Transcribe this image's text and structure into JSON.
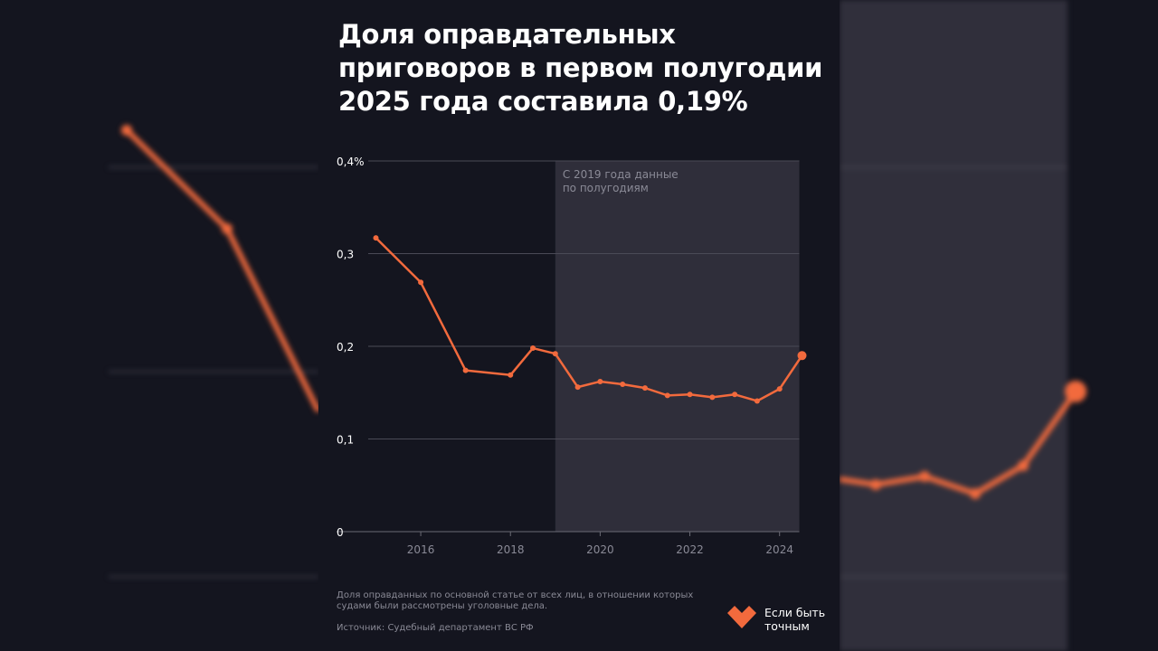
{
  "title": "Доля оправдательных приговоров в первом полугодии 2025 года составила 0,19%",
  "chart_data": {
    "type": "line",
    "title": "Доля оправдательных приговоров в первом полугодии 2025 года составила 0,19%",
    "xlabel": "",
    "ylabel": "",
    "ylim": [
      0,
      0.4
    ],
    "xlim": [
      2015,
      2024.5
    ],
    "y_ticks": [
      "0",
      "0,1",
      "0,2",
      "0,3",
      "0,4%"
    ],
    "x_ticks": [
      "2016",
      "2018",
      "2020",
      "2022",
      "2024"
    ],
    "x_tick_values": [
      2016,
      2018,
      2020,
      2022,
      2024
    ],
    "y_tick_values": [
      0,
      0.1,
      0.2,
      0.3,
      0.4
    ],
    "grid": true,
    "shaded_region": {
      "from": 2019,
      "to": 2024.5,
      "label": "С 2019 года данные по полугодиям"
    },
    "x": [
      2015,
      2016,
      2017,
      2018,
      2018.5,
      2019,
      2019.5,
      2020,
      2020.5,
      2021,
      2021.5,
      2022,
      2022.5,
      2023,
      2023.5,
      2024,
      2024.5
    ],
    "values": [
      0.317,
      0.269,
      0.174,
      0.169,
      0.198,
      0.192,
      0.156,
      0.162,
      0.159,
      0.155,
      0.147,
      0.148,
      0.145,
      0.148,
      0.141,
      0.154,
      0.19
    ],
    "line_color": "#f26a3d",
    "shade_color": "#2f2e3a"
  },
  "footnote": "Доля оправданных по основной статье от всех лиц, в отношении которых судами были рассмотрены уголовные дела.",
  "source": "Источник: Судебный департамент ВС РФ",
  "logo": {
    "line1": "Если быть",
    "line2": "точным",
    "color": "#f26a3d"
  }
}
